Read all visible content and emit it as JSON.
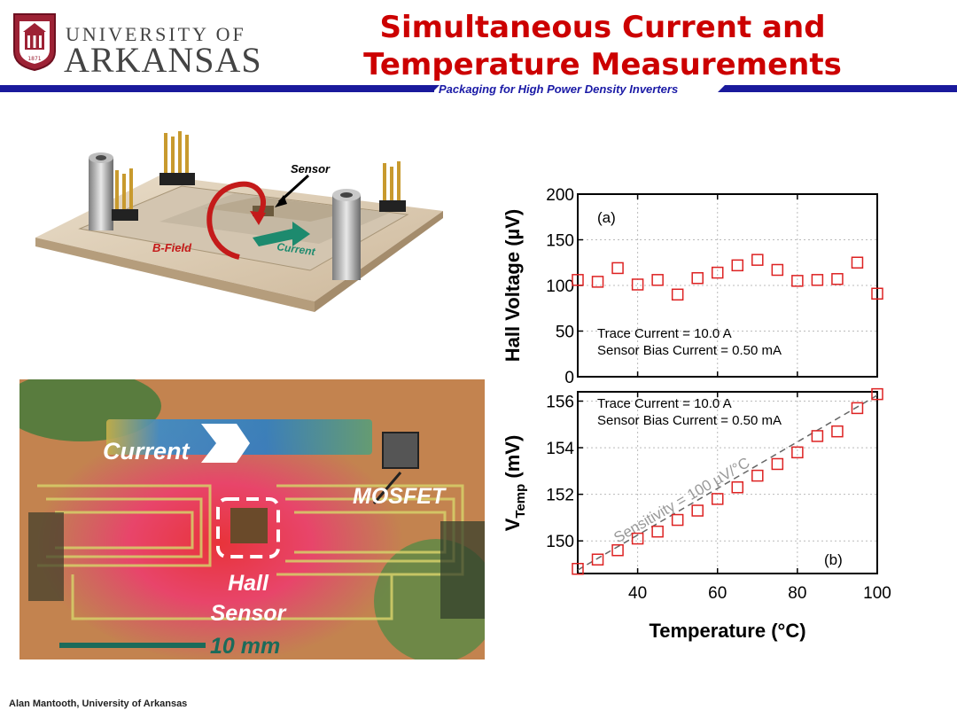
{
  "header": {
    "logo_line1": "UNIVERSITY OF",
    "logo_line2": "ARKANSAS",
    "logo_seal_year": "1871",
    "title_line1": "Simultaneous Current and",
    "title_line2": "Temperature Measurements",
    "subtitle": "Packaging for High Power Density Inverters"
  },
  "photo_top": {
    "label_sensor": "Sensor",
    "label_bfield": "B-Field",
    "label_current": "Current"
  },
  "photo_bottom": {
    "label_current": "Current",
    "label_mosfet": "MOSFET",
    "label_hall_1": "Hall",
    "label_hall_2": "Sensor",
    "label_scale": "10 mm"
  },
  "footer": {
    "credit": "Alan Mantooth, University of Arkansas"
  },
  "colors": {
    "title_red": "#cc0000",
    "subtitle_blue": "#1a1aa6",
    "marker_red": "#dd2222",
    "scale_green": "#1b6b5a"
  },
  "chart_data": [
    {
      "type": "scatter",
      "panel_label": "(a)",
      "ylabel": "Hall Voltage (µV)",
      "xlim": [
        25,
        100
      ],
      "ylim": [
        0,
        200
      ],
      "yticks": [
        0,
        50,
        100,
        150,
        200
      ],
      "grid": true,
      "annotation_line1": "Trace Current = 10.0 A",
      "annotation_line2": "Sensor Bias Current = 0.50 mA",
      "x": [
        25,
        30,
        35,
        40,
        45,
        50,
        55,
        60,
        65,
        70,
        75,
        80,
        85,
        90,
        95,
        100
      ],
      "y": [
        106,
        104,
        119,
        101,
        106,
        90,
        108,
        114,
        122,
        128,
        117,
        105,
        106,
        107,
        125,
        91
      ]
    },
    {
      "type": "scatter",
      "panel_label": "(b)",
      "ylabel_main": "V",
      "ylabel_sub": "Temp",
      "ylabel_unit": " (mV)",
      "xlabel": "Temperature (°C)",
      "xlim": [
        25,
        100
      ],
      "ylim": [
        148.6,
        156.4
      ],
      "yticks": [
        150,
        152,
        154,
        156
      ],
      "xticks": [
        40,
        60,
        80,
        100
      ],
      "grid": true,
      "annotation_line1": "Trace Current = 10.0 A",
      "annotation_line2": "Sensor Bias Current = 0.50 mA",
      "fit_label": "Sensitivity = 100 µV/°C",
      "fit_line": [
        [
          25,
          148.75
        ],
        [
          100,
          156.25
        ]
      ],
      "x": [
        25,
        30,
        35,
        40,
        45,
        50,
        55,
        60,
        65,
        70,
        75,
        80,
        85,
        90,
        95,
        100
      ],
      "y": [
        148.8,
        149.2,
        149.6,
        150.1,
        150.4,
        150.9,
        151.3,
        151.8,
        152.3,
        152.8,
        153.3,
        153.8,
        154.5,
        154.7,
        155.7,
        156.3
      ]
    }
  ]
}
